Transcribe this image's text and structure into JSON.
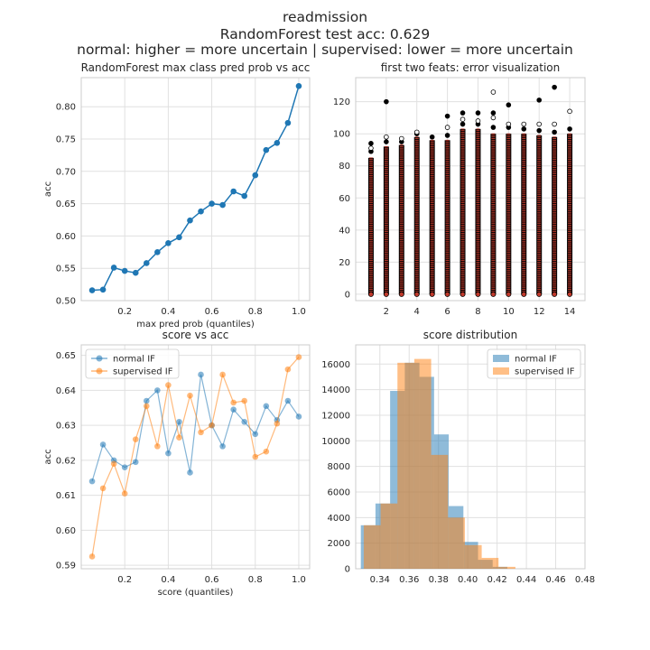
{
  "figure": {
    "title_lines": [
      "readmission",
      "RandomForest test acc: 0.629",
      "normal: higher = more uncertain | supervised: lower = more uncertain"
    ]
  },
  "colors": {
    "blue": "#1f77b4",
    "orange": "#ff7f0e",
    "scatter_red": "#c0392b",
    "scatter_black": "#000000",
    "grid": "#e0e0e0",
    "spine": "#cccccc"
  },
  "chart_data": [
    {
      "type": "line",
      "title": "RandomForest max class pred prob vs acc",
      "xlabel": "max pred prob (quantiles)",
      "ylabel": "acc",
      "xlim": [
        0.0,
        1.05
      ],
      "ylim": [
        0.5,
        0.845
      ],
      "xticks": [
        0.2,
        0.4,
        0.6,
        0.8,
        1.0
      ],
      "yticks": [
        0.5,
        0.55,
        0.6,
        0.65,
        0.7,
        0.75,
        0.8
      ],
      "grid": true,
      "series": [
        {
          "x": [
            0.05,
            0.1,
            0.15,
            0.2,
            0.25,
            0.3,
            0.35,
            0.4,
            0.45,
            0.5,
            0.55,
            0.6,
            0.65,
            0.7,
            0.75,
            0.8,
            0.85,
            0.9,
            0.95,
            1.0
          ],
          "values": [
            0.516,
            0.517,
            0.551,
            0.546,
            0.543,
            0.558,
            0.575,
            0.589,
            0.598,
            0.624,
            0.638,
            0.65,
            0.648,
            0.669,
            0.662,
            0.694,
            0.733,
            0.744,
            0.775,
            0.832
          ],
          "color": "#1f77b4"
        }
      ]
    },
    {
      "type": "scatter",
      "title": "first two feats: error visualization",
      "xlabel": "",
      "ylabel": "",
      "xlim": [
        0.0,
        15.0
      ],
      "ylim": [
        -4,
        135
      ],
      "xticks": [
        2,
        4,
        6,
        8,
        10,
        12,
        14
      ],
      "yticks": [
        0,
        20,
        40,
        60,
        80,
        100,
        120
      ],
      "grid": true,
      "columns": [
        {
          "x": 1,
          "y_max": 85,
          "outliers": [
            89,
            91,
            94
          ]
        },
        {
          "x": 2,
          "y_max": 92,
          "outliers": [
            95,
            98,
            120
          ]
        },
        {
          "x": 3,
          "y_max": 93,
          "outliers": [
            95,
            97
          ]
        },
        {
          "x": 4,
          "y_max": 98,
          "outliers": [
            100,
            101
          ]
        },
        {
          "x": 5,
          "y_max": 96,
          "outliers": [
            98
          ]
        },
        {
          "x": 6,
          "y_max": 96,
          "outliers": [
            99,
            104,
            111
          ]
        },
        {
          "x": 7,
          "y_max": 103,
          "outliers": [
            106,
            109,
            113
          ]
        },
        {
          "x": 8,
          "y_max": 103,
          "outliers": [
            106,
            108,
            113
          ]
        },
        {
          "x": 9,
          "y_max": 100,
          "outliers": [
            104,
            110,
            113,
            126
          ]
        },
        {
          "x": 10,
          "y_max": 100,
          "outliers": [
            104,
            106,
            118
          ]
        },
        {
          "x": 11,
          "y_max": 100,
          "outliers": [
            103,
            106
          ]
        },
        {
          "x": 12,
          "y_max": 99,
          "outliers": [
            102,
            106,
            121
          ]
        },
        {
          "x": 13,
          "y_max": 98,
          "outliers": [
            101,
            106,
            129
          ]
        },
        {
          "x": 14,
          "y_max": 100,
          "outliers": [
            103,
            114
          ]
        }
      ]
    },
    {
      "type": "line",
      "title": "score vs acc",
      "xlabel": "score (quantiles)",
      "ylabel": "acc",
      "xlim": [
        0.0,
        1.05
      ],
      "ylim": [
        0.589,
        0.653
      ],
      "xticks": [
        0.2,
        0.4,
        0.6,
        0.8,
        1.0
      ],
      "yticks": [
        0.59,
        0.6,
        0.61,
        0.62,
        0.63,
        0.64,
        0.65
      ],
      "grid": true,
      "legend": "upper-left",
      "x": [
        0.05,
        0.1,
        0.15,
        0.2,
        0.25,
        0.3,
        0.35,
        0.4,
        0.45,
        0.5,
        0.55,
        0.6,
        0.65,
        0.7,
        0.75,
        0.8,
        0.85,
        0.9,
        0.95,
        1.0
      ],
      "series": [
        {
          "name": "normal IF",
          "color": "#1f77b4",
          "values": [
            0.614,
            0.6245,
            0.62,
            0.618,
            0.6195,
            0.637,
            0.64,
            0.622,
            0.631,
            0.6165,
            0.6445,
            0.63,
            0.624,
            0.6345,
            0.631,
            0.6275,
            0.6355,
            0.6315,
            0.637,
            0.6325
          ]
        },
        {
          "name": "supervised IF",
          "color": "#ff7f0e",
          "values": [
            0.5925,
            0.612,
            0.619,
            0.6105,
            0.626,
            0.6355,
            0.624,
            0.6415,
            0.6265,
            0.6385,
            0.628,
            0.63,
            0.6445,
            0.6365,
            0.637,
            0.621,
            0.6225,
            0.6305,
            0.646,
            0.6495
          ]
        }
      ]
    },
    {
      "type": "bar",
      "subtype": "histogram",
      "title": "score distribution",
      "xlabel": "",
      "ylabel": "",
      "xlim": [
        0.3235,
        0.48
      ],
      "ylim": [
        0,
        17500
      ],
      "xticks": [
        0.34,
        0.36,
        0.38,
        0.4,
        0.42,
        0.44,
        0.46,
        0.48
      ],
      "yticks": [
        0,
        2000,
        4000,
        6000,
        8000,
        10000,
        12000,
        14000,
        16000
      ],
      "grid": true,
      "legend": "upper-right",
      "series": [
        {
          "name": "normal IF",
          "color": "#1f77b4",
          "bins": [
            [
              0.327,
              0.337,
              3400
            ],
            [
              0.337,
              0.347,
              5100
            ],
            [
              0.347,
              0.357,
              13900
            ],
            [
              0.357,
              0.367,
              16100
            ],
            [
              0.367,
              0.377,
              15000
            ],
            [
              0.377,
              0.387,
              10500
            ],
            [
              0.387,
              0.397,
              4900
            ],
            [
              0.397,
              0.407,
              2100
            ],
            [
              0.407,
              0.417,
              700
            ],
            [
              0.417,
              0.427,
              150
            ]
          ]
        },
        {
          "name": "supervised IF",
          "color": "#ff7f0e",
          "bins": [
            [
              0.329,
              0.3405,
              3400
            ],
            [
              0.3405,
              0.352,
              5100
            ],
            [
              0.352,
              0.3635,
              16100
            ],
            [
              0.3635,
              0.375,
              16400
            ],
            [
              0.375,
              0.3865,
              8900
            ],
            [
              0.3865,
              0.398,
              4000
            ],
            [
              0.398,
              0.4095,
              1850
            ],
            [
              0.4095,
              0.421,
              850
            ],
            [
              0.421,
              0.4325,
              150
            ]
          ]
        }
      ]
    }
  ]
}
